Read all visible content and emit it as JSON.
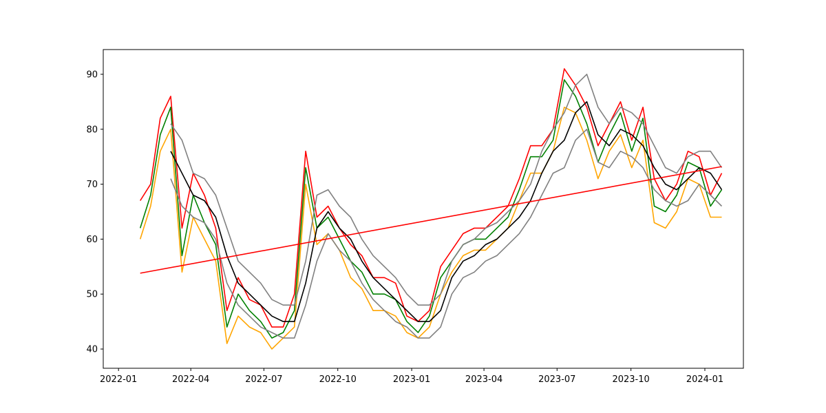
{
  "chart_data": {
    "type": "line",
    "title": "",
    "xlabel": "",
    "ylabel": "",
    "xlim": [
      "2021-12-13",
      "2024-02-18"
    ],
    "ylim": [
      36.5,
      94.5
    ],
    "grid": false,
    "x_ticks": [
      "2022-01",
      "2022-04",
      "2022-07",
      "2022-10",
      "2023-01",
      "2023-04",
      "2023-07",
      "2023-10",
      "2024-01"
    ],
    "y_ticks": [
      40,
      50,
      60,
      70,
      80,
      90
    ],
    "x_dates": [
      "2022-01-28",
      "2022-02-10",
      "2022-02-22",
      "2022-03-07",
      "2022-03-21",
      "2022-04-04",
      "2022-04-18",
      "2022-05-02",
      "2022-05-16",
      "2022-05-30",
      "2022-06-13",
      "2022-06-27",
      "2022-07-11",
      "2022-07-25",
      "2022-08-08",
      "2022-08-22",
      "2022-09-05",
      "2022-09-19",
      "2022-10-03",
      "2022-10-17",
      "2022-10-31",
      "2022-11-14",
      "2022-11-28",
      "2022-12-12",
      "2022-12-26",
      "2023-01-09",
      "2023-01-23",
      "2023-02-06",
      "2023-02-20",
      "2023-03-06",
      "2023-03-20",
      "2023-04-03",
      "2023-04-17",
      "2023-05-01",
      "2023-05-15",
      "2023-05-29",
      "2023-06-12",
      "2023-06-26",
      "2023-07-10",
      "2023-07-24",
      "2023-08-07",
      "2023-08-21",
      "2023-09-04",
      "2023-09-18",
      "2023-10-02",
      "2023-10-16",
      "2023-10-30",
      "2023-11-13",
      "2023-11-27",
      "2023-12-11",
      "2023-12-25",
      "2024-01-08",
      "2024-01-22"
    ],
    "series": [
      {
        "color": "#ff0000",
        "role": "high",
        "values": [
          67,
          70,
          82,
          86,
          62,
          72,
          68,
          62,
          47,
          53,
          49,
          48,
          44,
          44,
          50,
          76,
          64,
          66,
          62,
          59,
          57,
          53,
          53,
          52,
          46,
          45,
          47,
          55,
          58,
          61,
          62,
          62,
          64,
          66,
          71,
          77,
          77,
          80,
          91,
          88,
          84,
          77,
          81,
          85,
          78,
          84,
          71,
          67,
          70,
          76,
          75,
          68,
          72
        ]
      },
      {
        "color": "#ffa500",
        "role": "low",
        "values": [
          60,
          66,
          76,
          80,
          54,
          64,
          60,
          56,
          41,
          46,
          44,
          43,
          40,
          42,
          44,
          70,
          59,
          61,
          58,
          53,
          51,
          47,
          47,
          46,
          43,
          42,
          44,
          50,
          54,
          57,
          58,
          58,
          60,
          62,
          67,
          72,
          72,
          76,
          84,
          83,
          78,
          71,
          76,
          79,
          73,
          78,
          63,
          62,
          65,
          71,
          70,
          64,
          64
        ]
      },
      {
        "color": "#008000",
        "role": "close",
        "values": [
          62,
          68,
          79,
          84,
          57,
          68,
          63,
          59,
          44,
          50,
          47,
          45,
          42,
          43,
          47,
          73,
          62,
          64,
          60,
          56,
          54,
          50,
          50,
          49,
          45,
          43,
          46,
          53,
          56,
          59,
          60,
          60,
          62,
          64,
          69,
          75,
          75,
          78,
          89,
          86,
          81,
          74,
          79,
          83,
          76,
          82,
          66,
          65,
          68,
          74,
          73,
          66,
          69
        ]
      },
      {
        "color": "#000000",
        "role": "moving average",
        "values": [
          null,
          null,
          null,
          76,
          72,
          68,
          67,
          64,
          57,
          52,
          50,
          48,
          46,
          45,
          45,
          52,
          62,
          65,
          62,
          60,
          56,
          53,
          51,
          49,
          47,
          45,
          45,
          47,
          53,
          56,
          57,
          59,
          60,
          62,
          64,
          67,
          72,
          76,
          78,
          83,
          85,
          79,
          77,
          80,
          79,
          77,
          73,
          70,
          69,
          71,
          73,
          72,
          69
        ]
      },
      {
        "color": "#808080",
        "role": "upper band",
        "values": [
          null,
          null,
          null,
          81,
          78,
          72,
          71,
          68,
          62,
          56,
          54,
          52,
          49,
          48,
          48,
          56,
          68,
          69,
          66,
          64,
          60,
          57,
          55,
          53,
          50,
          48,
          48,
          50,
          56,
          59,
          60,
          62,
          63,
          65,
          67,
          70,
          76,
          80,
          83,
          88,
          90,
          84,
          81,
          84,
          83,
          81,
          77,
          73,
          72,
          75,
          76,
          76,
          73
        ]
      },
      {
        "color": "#808080",
        "role": "lower band",
        "values": [
          null,
          null,
          null,
          71,
          66,
          64,
          63,
          60,
          52,
          48,
          46,
          44,
          43,
          42,
          42,
          48,
          56,
          61,
          58,
          56,
          52,
          49,
          47,
          45,
          44,
          42,
          42,
          44,
          50,
          53,
          54,
          56,
          57,
          59,
          61,
          64,
          68,
          72,
          73,
          78,
          80,
          74,
          73,
          76,
          75,
          73,
          69,
          67,
          66,
          67,
          70,
          68,
          66
        ]
      },
      {
        "color": "#ff0000",
        "role": "trend line",
        "x": [
          "2022-01-28",
          "2024-01-22"
        ],
        "values": [
          53.8,
          73.2
        ]
      }
    ]
  }
}
